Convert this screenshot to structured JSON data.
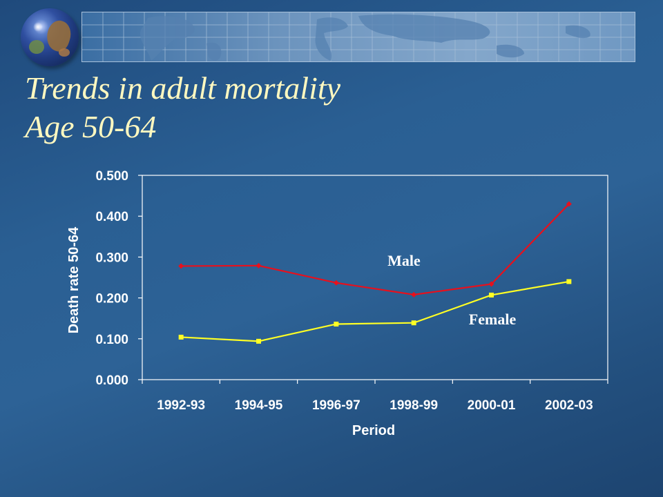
{
  "slide": {
    "title_line1": "Trends in adult mortality",
    "title_line2": "Age 50-64"
  },
  "colors": {
    "male": "#e8101c",
    "female": "#ffff24",
    "title": "#fff8c0",
    "text": "#ffffff"
  },
  "chart_data": {
    "type": "line",
    "categories": [
      "1992-93",
      "1994-95",
      "1996-97",
      "1998-99",
      "2000-01",
      "2002-03"
    ],
    "series": [
      {
        "name": "Male",
        "values": [
          0.278,
          0.279,
          0.237,
          0.208,
          0.234,
          0.43
        ],
        "color": "#e8101c",
        "marker": "diamond"
      },
      {
        "name": "Female",
        "values": [
          0.104,
          0.094,
          0.136,
          0.139,
          0.207,
          0.24
        ],
        "color": "#ffff24",
        "marker": "square"
      }
    ],
    "xlabel": "Period",
    "ylabel": "Death rate 50-64",
    "ylim": [
      0,
      0.5
    ],
    "yticks": [
      "0.000",
      "0.100",
      "0.200",
      "0.300",
      "0.400",
      "0.500"
    ],
    "grid": false,
    "legend": "inline labels"
  }
}
